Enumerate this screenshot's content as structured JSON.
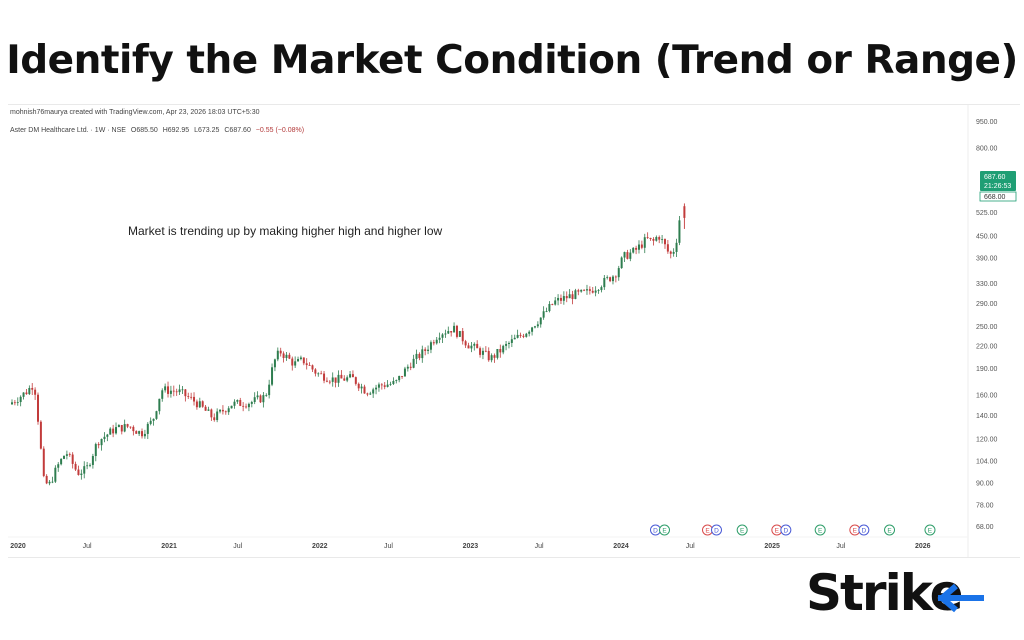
{
  "page": {
    "headline": "Identify the Market Condition (Trend or Range)",
    "credit": "mohnish76maurya created with TradingView.com, Apr 23, 2026 18:03 UTC+5:30",
    "logo_text": "Strike",
    "colors": {
      "accent": "#1a73e8",
      "up": "#2e7d4f",
      "down": "#c23b3b",
      "badge": "#1f9e74"
    }
  },
  "chart_data": {
    "type": "candlestick",
    "symbol": "Aster DM Healthcare Ltd. · 1W · NSE",
    "ohlc": {
      "open": "O685.50",
      "high": "H692.95",
      "low": "L673.25",
      "close": "C687.60",
      "change": "−0.55 (−0.08%)"
    },
    "annotation": "Market is trending up by making higher high and higher low",
    "last_price": "687.60",
    "countdown": "21:26:53",
    "second_price": "668.00",
    "y_axis": {
      "scale": "log",
      "range": [
        60,
        1000
      ],
      "ticks": [
        "68.00",
        "78.00",
        "90.00",
        "104.00",
        "120.00",
        "140.00",
        "160.00",
        "190.00",
        "220.00",
        "250.00",
        "290.00",
        "330.00",
        "390.00",
        "450.00",
        "525.00",
        "800.00",
        "950.00"
      ]
    },
    "x_axis": {
      "range": [
        "2020-01-01",
        "2026-04-23"
      ],
      "ticks": [
        {
          "date": "2020-01-01",
          "label": "2020"
        },
        {
          "date": "2020-07-01",
          "label": "Jul"
        },
        {
          "date": "2021-01-01",
          "label": "2021"
        },
        {
          "date": "2021-07-01",
          "label": "Jul"
        },
        {
          "date": "2022-01-01",
          "label": "2022"
        },
        {
          "date": "2022-07-01",
          "label": "Jul"
        },
        {
          "date": "2023-01-01",
          "label": "2023"
        },
        {
          "date": "2023-07-01",
          "label": "Jul"
        },
        {
          "date": "2024-01-01",
          "label": "2024"
        },
        {
          "date": "2024-07-01",
          "label": "Jul"
        },
        {
          "date": "2025-01-01",
          "label": "2025"
        },
        {
          "date": "2025-07-01",
          "label": "Jul"
        },
        {
          "date": "2026-01-01",
          "label": "2026"
        }
      ]
    },
    "events": [
      {
        "date": "2024-04-08",
        "labels": [
          "D",
          "E"
        ]
      },
      {
        "date": "2024-08-12",
        "labels": [
          "E",
          "D"
        ]
      },
      {
        "date": "2024-11-04",
        "labels": [
          "E"
        ]
      },
      {
        "date": "2025-01-27",
        "labels": [
          "E",
          "D"
        ]
      },
      {
        "date": "2025-05-12",
        "labels": [
          "E"
        ]
      },
      {
        "date": "2025-08-04",
        "labels": [
          "E",
          "D"
        ]
      },
      {
        "date": "2025-10-27",
        "labels": [
          "E"
        ]
      },
      {
        "date": "2026-02-02",
        "labels": [
          "E"
        ]
      }
    ],
    "price_path": [
      [
        "2020-01-01",
        150
      ],
      [
        "2020-02-10",
        162
      ],
      [
        "2020-03-02",
        172
      ],
      [
        "2020-03-16",
        120
      ],
      [
        "2020-03-23",
        92
      ],
      [
        "2020-04-06",
        88
      ],
      [
        "2020-04-27",
        100
      ],
      [
        "2020-05-18",
        110
      ],
      [
        "2020-06-15",
        96
      ],
      [
        "2020-07-06",
        98
      ],
      [
        "2020-08-03",
        118
      ],
      [
        "2020-09-14",
        128
      ],
      [
        "2020-10-19",
        130
      ],
      [
        "2020-11-16",
        124
      ],
      [
        "2020-12-14",
        135
      ],
      [
        "2021-01-04",
        165
      ],
      [
        "2021-02-15",
        163
      ],
      [
        "2021-03-29",
        152
      ],
      [
        "2021-05-10",
        137
      ],
      [
        "2021-06-21",
        150
      ],
      [
        "2021-08-09",
        152
      ],
      [
        "2021-09-13",
        158
      ],
      [
        "2021-10-04",
        198
      ],
      [
        "2021-10-18",
        212
      ],
      [
        "2021-11-22",
        195
      ],
      [
        "2021-12-13",
        200
      ],
      [
        "2022-01-17",
        183
      ],
      [
        "2022-02-28",
        176
      ],
      [
        "2022-04-11",
        178
      ],
      [
        "2022-05-16",
        163
      ],
      [
        "2022-06-20",
        170
      ],
      [
        "2022-07-25",
        172
      ],
      [
        "2022-08-29",
        195
      ],
      [
        "2022-10-03",
        212
      ],
      [
        "2022-11-07",
        238
      ],
      [
        "2022-12-12",
        246
      ],
      [
        "2023-01-16",
        222
      ],
      [
        "2023-02-20",
        210
      ],
      [
        "2023-03-13",
        202
      ],
      [
        "2023-04-24",
        222
      ],
      [
        "2023-06-05",
        240
      ],
      [
        "2023-07-10",
        262
      ],
      [
        "2023-08-14",
        292
      ],
      [
        "2023-09-25",
        305
      ],
      [
        "2023-10-30",
        310
      ],
      [
        "2023-12-04",
        328
      ],
      [
        "2024-01-08",
        350
      ],
      [
        "2024-01-29",
        392
      ],
      [
        "2024-02-26",
        408
      ],
      [
        "2024-03-25",
        440
      ],
      [
        "2024-04-08",
        430
      ],
      [
        "2024-04-22",
        452
      ],
      [
        "2024-05-06",
        425
      ],
      [
        "2024-05-20",
        395
      ],
      [
        "2024-06-03",
        418
      ],
      [
        "2024-06-10",
        500
      ]
    ]
  }
}
